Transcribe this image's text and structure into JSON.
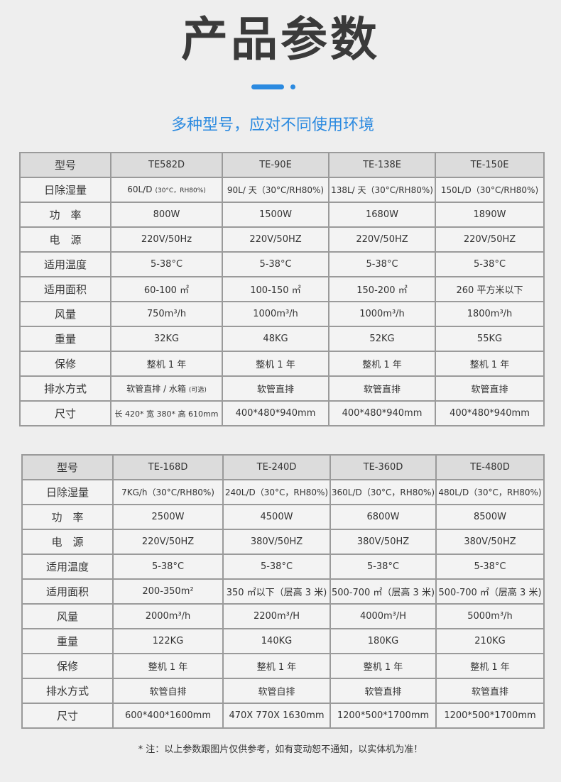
{
  "title": "产品参数",
  "subtitle": "多种型号，应对不同使用环境",
  "accent_color": "#2b8ae0",
  "row_labels": [
    "型号",
    "日除湿量",
    "功　率",
    "电　源",
    "适用温度",
    "适用面积",
    "风量",
    "重量",
    "保修",
    "排水方式",
    "尺寸"
  ],
  "table1": {
    "models": [
      "TE582D",
      "TE-90E",
      "TE-138E",
      "TE-150E"
    ],
    "rows": [
      [
        "60L/D",
        "90L/ 天（30°C/RH80%)",
        "138L/ 天（30°C/RH80%)",
        "150L/D（30°C/RH80%)"
      ],
      [
        "800W",
        "1500W",
        "1680W",
        "1890W"
      ],
      [
        "220V/50Hz",
        "220V/50HZ",
        "220V/50HZ",
        "220V/50HZ"
      ],
      [
        "5-38°C",
        "5-38°C",
        "5-38°C",
        "5-38°C"
      ],
      [
        "60-100 ㎡",
        "100-150 ㎡",
        "150-200 ㎡",
        "260 平方米以下"
      ],
      [
        "750m³/h",
        "1000m³/h",
        "1000m³/h",
        "1800m³/h"
      ],
      [
        "32KG",
        "48KG",
        "52KG",
        "55KG"
      ],
      [
        "整机 1 年",
        "整机 1 年",
        "整机 1 年",
        "整机 1 年"
      ],
      [
        "软管直排 / 水箱",
        "软管直排",
        "软管直排",
        "软管直排"
      ],
      [
        "长 420* 宽 380* 高 610mm",
        "400*480*940mm",
        "400*480*940mm",
        "400*480*940mm"
      ]
    ],
    "small_notes": {
      "humidity": "(30°C，RH80%)",
      "drain": "(可选)"
    }
  },
  "table2": {
    "models": [
      "TE-168D",
      "TE-240D",
      "TE-360D",
      "TE-480D"
    ],
    "rows": [
      [
        "7KG/h（30°C/RH80%)",
        "240L/D（30°C，RH80%)",
        "360L/D（30°C，RH80%)",
        "480L/D（30°C，RH80%)"
      ],
      [
        "2500W",
        "4500W",
        "6800W",
        "8500W"
      ],
      [
        "220V/50HZ",
        "380V/50HZ",
        "380V/50HZ",
        "380V/50HZ"
      ],
      [
        "5-38°C",
        "5-38°C",
        "5-38°C",
        "5-38°C"
      ],
      [
        "200-350m²",
        "350 ㎡以下（层高 3 米)",
        "500-700 ㎡（层高 3 米)",
        "500-700 ㎡（层高 3 米)"
      ],
      [
        "2000m³/h",
        "2200m³/H",
        "4000m³/H",
        "5000m³/h"
      ],
      [
        "122KG",
        "140KG",
        "180KG",
        "210KG"
      ],
      [
        "整机 1 年",
        "整机 1 年",
        "整机 1 年",
        "整机 1 年"
      ],
      [
        "软管自排",
        "软管自排",
        "软管直排",
        "软管直排"
      ],
      [
        "600*400*1600mm",
        "470X 770X 1630mm",
        "1200*500*1700mm",
        "1200*500*1700mm"
      ]
    ]
  },
  "footnote": "* 注：以上参数跟图片仅供参考，如有变动恕不通知，以实体机为准！"
}
